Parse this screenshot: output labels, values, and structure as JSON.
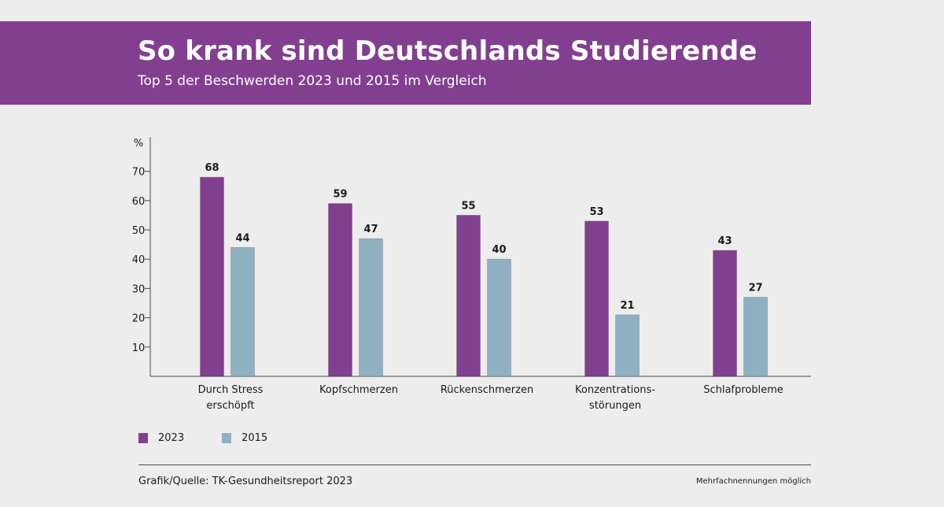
{
  "header": {
    "title": "So krank sind Deutschlands Studierende",
    "subtitle": "Top 5 der Beschwerden 2023 und 2015 im Vergleich"
  },
  "chart_data": {
    "type": "bar",
    "title": "So krank sind Deutschlands Studierende",
    "subtitle": "Top 5 der Beschwerden 2023 und 2015 im Vergleich",
    "ylabel": "%",
    "xlabel": "",
    "ylim": [
      0,
      80
    ],
    "yticks": [
      10,
      20,
      30,
      40,
      50,
      60,
      70
    ],
    "grid": false,
    "legend_position": "bottom-left",
    "categories": [
      [
        "Durch Stress",
        "erschöpft"
      ],
      [
        "Kopfschmerzen"
      ],
      [
        "Rückenschmerzen"
      ],
      [
        "Konzentrations-",
        "störungen"
      ],
      [
        "Schlafprobleme"
      ]
    ],
    "series": [
      {
        "name": "2023",
        "color": "#823f8f",
        "values": [
          68,
          59,
          55,
          53,
          43
        ]
      },
      {
        "name": "2015",
        "color": "#8fb0c1",
        "values": [
          44,
          47,
          40,
          21,
          27
        ]
      }
    ]
  },
  "legend": {
    "items": [
      {
        "label": "2023",
        "color": "#823f8f"
      },
      {
        "label": "2015",
        "color": "#8fb0c1"
      }
    ]
  },
  "footer": {
    "source": "Grafik/Quelle: TK-Gesundheitsreport 2023",
    "note": "Mehrfachnennungen möglich"
  }
}
